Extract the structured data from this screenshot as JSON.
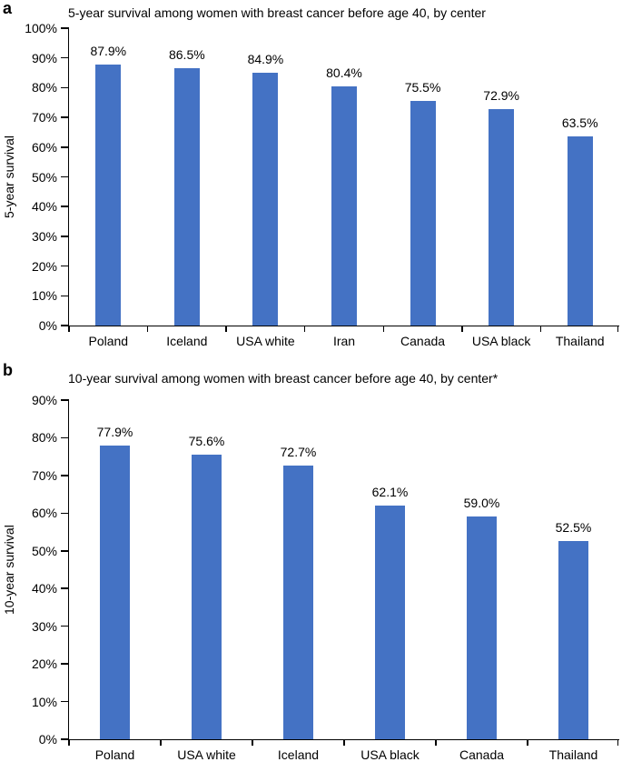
{
  "figure": {
    "background_color": "#ffffff",
    "text_color": "#000000",
    "axis_color": "#000000"
  },
  "chart_data": [
    {
      "type": "bar",
      "panel_label": "a",
      "title": "5-year survival among women with breast cancer before age 40, by center",
      "ylabel": "5-year survival",
      "xlabel": "",
      "categories": [
        "Poland",
        "Iceland",
        "USA white",
        "Iran",
        "Canada",
        "USA black",
        "Thailand"
      ],
      "values": [
        87.9,
        86.5,
        84.9,
        80.4,
        75.5,
        72.9,
        63.5
      ],
      "data_labels": [
        "87.9%",
        "86.5%",
        "84.9%",
        "80.4%",
        "75.5%",
        "72.9%",
        "63.5%"
      ],
      "ylim": [
        0,
        100
      ],
      "ytick_step": 10,
      "ytick_labels": [
        "0%",
        "10%",
        "20%",
        "30%",
        "40%",
        "50%",
        "60%",
        "70%",
        "80%",
        "90%",
        "100%"
      ],
      "bar_color": "#4472C4",
      "grid": false,
      "legend": null
    },
    {
      "type": "bar",
      "panel_label": "b",
      "title": "10-year survival among women with breast cancer before age 40, by center*",
      "ylabel": "10-year survival",
      "xlabel": "",
      "categories": [
        "Poland",
        "USA white",
        "Iceland",
        "USA black",
        "Canada",
        "Thailand"
      ],
      "values": [
        77.9,
        75.6,
        72.7,
        62.1,
        59.0,
        52.5
      ],
      "data_labels": [
        "77.9%",
        "75.6%",
        "72.7%",
        "62.1%",
        "59.0%",
        "52.5%"
      ],
      "ylim": [
        0,
        90
      ],
      "ytick_step": 10,
      "ytick_labels": [
        "0%",
        "10%",
        "20%",
        "30%",
        "40%",
        "50%",
        "60%",
        "70%",
        "80%",
        "90%"
      ],
      "bar_color": "#4472C4",
      "grid": false,
      "legend": null
    }
  ]
}
